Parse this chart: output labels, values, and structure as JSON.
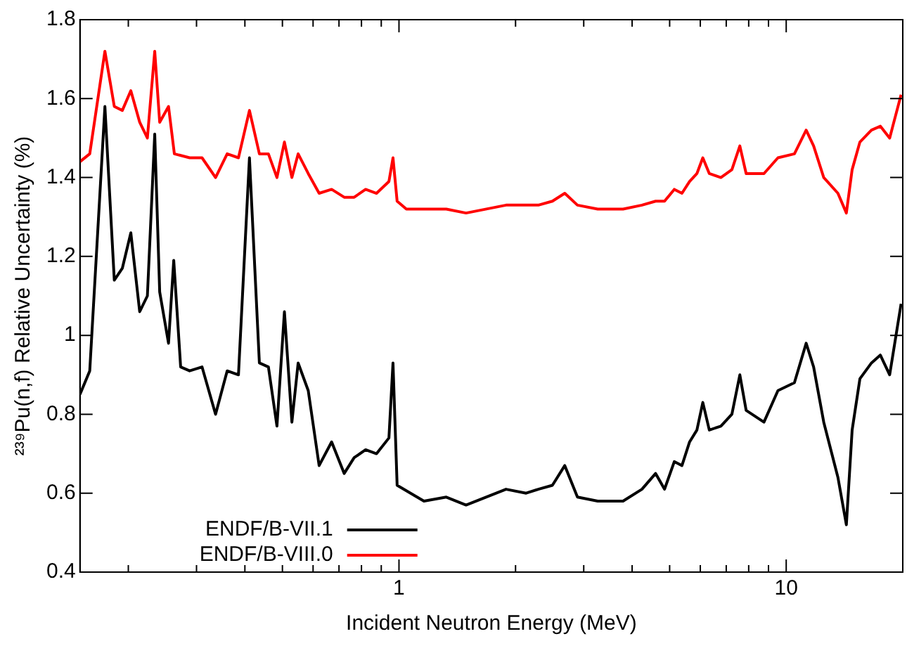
{
  "chart_data": {
    "type": "line",
    "xlabel": "Incident Neutron Energy (MeV)",
    "ylabel": "²³⁹Pu(n,f) Relative Uncertainty (%)",
    "log": "x",
    "xlim": [
      0.15,
      20
    ],
    "ylim": [
      0.4,
      1.8
    ],
    "xticks": [
      {
        "value": 0.2,
        "label": null
      },
      {
        "value": 0.3,
        "label": null
      },
      {
        "value": 0.4,
        "label": null
      },
      {
        "value": 0.5,
        "label": null
      },
      {
        "value": 0.6,
        "label": null
      },
      {
        "value": 0.7,
        "label": null
      },
      {
        "value": 0.8,
        "label": null
      },
      {
        "value": 0.9,
        "label": null
      },
      1,
      {
        "value": 2,
        "label": null
      },
      {
        "value": 3,
        "label": null
      },
      {
        "value": 4,
        "label": null
      },
      {
        "value": 5,
        "label": null
      },
      {
        "value": 6,
        "label": null
      },
      {
        "value": 7,
        "label": null
      },
      {
        "value": 8,
        "label": null
      },
      {
        "value": 9,
        "label": null
      },
      10,
      {
        "value": 20,
        "label": null
      }
    ],
    "yticks": [
      0.4,
      0.6,
      0.8,
      1,
      1.2,
      1.4,
      1.6,
      1.8
    ],
    "grid": false,
    "legend": "bottom left",
    "marker": "none",
    "line_style": "solid",
    "series": [
      {
        "name": "ENDF/B-VII.1",
        "color": "#000000",
        "x": [
          0.15,
          0.159,
          0.174,
          0.184,
          0.193,
          0.203,
          0.214,
          0.224,
          0.234,
          0.241,
          0.254,
          0.262,
          0.273,
          0.288,
          0.31,
          0.336,
          0.36,
          0.385,
          0.411,
          0.436,
          0.46,
          0.484,
          0.506,
          0.529,
          0.549,
          0.583,
          0.622,
          0.67,
          0.722,
          0.766,
          0.82,
          0.875,
          0.942,
          0.965,
          0.989,
          1.16,
          1.325,
          1.49,
          1.89,
          2.13,
          2.29,
          2.49,
          2.68,
          2.89,
          3.26,
          3.79,
          4.24,
          4.6,
          4.85,
          5.14,
          5.38,
          5.63,
          5.88,
          6.09,
          6.33,
          6.78,
          7.24,
          7.59,
          7.88,
          8.76,
          9.52,
          10.5,
          11.26,
          11.77,
          12.5,
          13.6,
          14.3,
          14.8,
          15.5,
          16.6,
          17.5,
          18.5,
          19.8
        ],
        "values": [
          0.85,
          0.91,
          1.58,
          1.14,
          1.17,
          1.26,
          1.06,
          1.1,
          1.51,
          1.11,
          0.98,
          1.19,
          0.92,
          0.91,
          0.92,
          0.8,
          0.91,
          0.9,
          1.45,
          0.93,
          0.92,
          0.77,
          1.06,
          0.78,
          0.93,
          0.86,
          0.67,
          0.73,
          0.65,
          0.69,
          0.71,
          0.7,
          0.74,
          0.93,
          0.62,
          0.58,
          0.59,
          0.57,
          0.61,
          0.6,
          0.61,
          0.62,
          0.67,
          0.59,
          0.58,
          0.58,
          0.61,
          0.65,
          0.61,
          0.68,
          0.67,
          0.73,
          0.76,
          0.83,
          0.76,
          0.77,
          0.8,
          0.9,
          0.81,
          0.78,
          0.86,
          0.88,
          0.98,
          0.92,
          0.78,
          0.64,
          0.52,
          0.76,
          0.89,
          0.93,
          0.95,
          0.9,
          1.08
        ]
      },
      {
        "name": "ENDF/B-VIII.0",
        "color": "#ff0000",
        "x": [
          0.15,
          0.159,
          0.174,
          0.184,
          0.193,
          0.203,
          0.214,
          0.224,
          0.234,
          0.241,
          0.254,
          0.263,
          0.288,
          0.31,
          0.336,
          0.36,
          0.385,
          0.411,
          0.436,
          0.46,
          0.484,
          0.506,
          0.529,
          0.549,
          0.583,
          0.622,
          0.67,
          0.722,
          0.766,
          0.82,
          0.875,
          0.942,
          0.965,
          0.989,
          1.045,
          1.18,
          1.325,
          1.49,
          1.89,
          2.29,
          2.49,
          2.68,
          2.89,
          3.26,
          3.79,
          4.24,
          4.6,
          4.85,
          5.14,
          5.38,
          5.63,
          5.88,
          6.09,
          6.33,
          6.78,
          7.24,
          7.59,
          7.88,
          8.76,
          9.52,
          10.5,
          11.26,
          11.77,
          12.5,
          13.6,
          14.3,
          14.8,
          15.5,
          16.6,
          17.5,
          18.5,
          19.8
        ],
        "values": [
          1.44,
          1.46,
          1.72,
          1.58,
          1.57,
          1.62,
          1.54,
          1.5,
          1.72,
          1.54,
          1.58,
          1.46,
          1.45,
          1.45,
          1.4,
          1.46,
          1.45,
          1.57,
          1.46,
          1.46,
          1.4,
          1.49,
          1.4,
          1.46,
          1.41,
          1.36,
          1.37,
          1.35,
          1.35,
          1.37,
          1.36,
          1.39,
          1.45,
          1.34,
          1.32,
          1.32,
          1.32,
          1.31,
          1.33,
          1.33,
          1.34,
          1.36,
          1.33,
          1.32,
          1.32,
          1.33,
          1.34,
          1.34,
          1.37,
          1.36,
          1.39,
          1.41,
          1.45,
          1.41,
          1.4,
          1.42,
          1.48,
          1.41,
          1.41,
          1.45,
          1.46,
          1.52,
          1.48,
          1.4,
          1.36,
          1.31,
          1.42,
          1.49,
          1.52,
          1.53,
          1.5,
          1.61
        ]
      }
    ]
  }
}
